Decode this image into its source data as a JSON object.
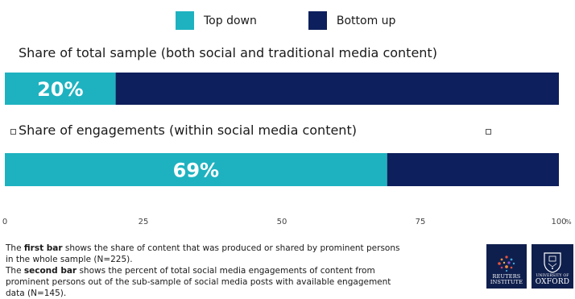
{
  "chart_data": {
    "type": "bar",
    "orientation": "horizontal",
    "stacked": true,
    "series": [
      {
        "name": "Top down",
        "values": [
          20,
          69
        ],
        "color": "#1eb2c0"
      },
      {
        "name": "Bottom up",
        "values": [
          80,
          31
        ],
        "color": "#0d1f5c"
      }
    ],
    "categories": [
      "Share of total sample (both social and traditional media content)",
      "Share of engagements (within social media content)"
    ],
    "data_labels": [
      "20%",
      "69%"
    ],
    "x_ticks": [
      "0",
      "25",
      "50",
      "75",
      "100"
    ],
    "x_unit": "%",
    "xlim": [
      0,
      100
    ],
    "legend_position": "top",
    "grid": false
  },
  "footnote": {
    "line1_bold": "first bar",
    "line1_pre": "The ",
    "line1_post": " shows the share of content that was produced or shared by prominent persons in the whole sample (N=225).",
    "line2_bold": "second bar",
    "line2_pre": "The ",
    "line2_post": " shows the percent of total social media engagements of content from prominent persons out of the sub-sample of social media posts with available engagement data (N=145)."
  },
  "logos": {
    "reuters_line1": "REUTERS",
    "reuters_line2": "INSTITUTE",
    "oxford_line1": "UNIVERSITY OF",
    "oxford_line2": "OXFORD"
  }
}
